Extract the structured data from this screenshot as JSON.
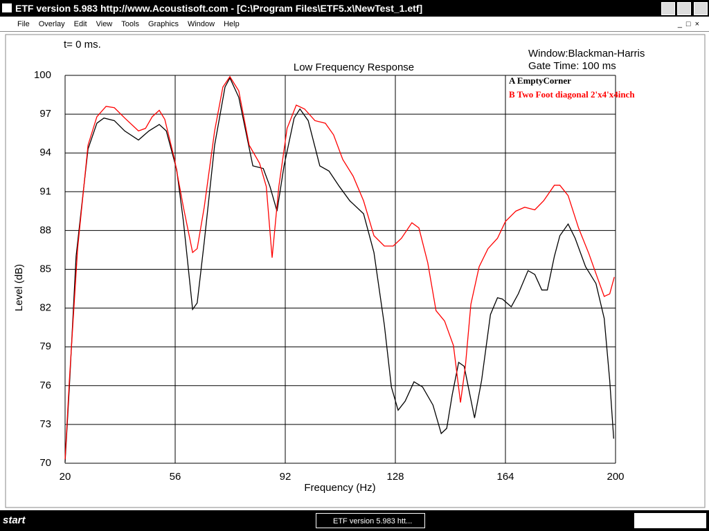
{
  "window": {
    "title": "ETF version 5.983 http://www.Acoustisoft.com - [C:\\Program Files\\ETF5.x\\NewTest_1.etf]",
    "menu": [
      "File",
      "Overlay",
      "Edit",
      "View",
      "Tools",
      "Graphics",
      "Window",
      "Help"
    ],
    "time_label": "t= 0 ms.",
    "window_label": "Window:Blackman-Harris",
    "gate_label": "Gate Time: 100 ms",
    "start": "start",
    "task": "ETF version 5.983 htt..."
  },
  "chart_data": {
    "type": "line",
    "title": "Low Frequency Response",
    "x_label": "Frequency (Hz)",
    "y_label": "Level (dB)",
    "xlim": [
      20,
      200
    ],
    "xticks": [
      20,
      56,
      92,
      128,
      164,
      200
    ],
    "ylim": [
      70,
      100
    ],
    "yticks": [
      70,
      73,
      76,
      79,
      82,
      85,
      88,
      91,
      94,
      97,
      100
    ],
    "grid": true,
    "series": [
      {
        "name": "A EmptyCorner",
        "color": "#000000",
        "x": [
          20,
          21.4,
          23.6,
          27.5,
          30.4,
          32.7,
          36.1,
          39.5,
          44,
          47.4,
          50.8,
          53.1,
          56.5,
          58.7,
          61.7,
          63.2,
          65.5,
          68.9,
          72.3,
          73.9,
          76.8,
          81.4,
          84.8,
          87,
          89.3,
          91.6,
          94.9,
          96.8,
          99.5,
          103.3,
          106.3,
          109.7,
          113.1,
          117.6,
          121,
          124.4,
          126.7,
          128.9,
          131.2,
          134.1,
          136.9,
          140.3,
          143,
          144.8,
          146.6,
          148.7,
          150.5,
          153.9,
          156.2,
          159.1,
          161.4,
          163,
          165.9,
          168.2,
          171.4,
          173.6,
          175.9,
          177.7,
          180,
          181.8,
          184.5,
          186.8,
          190.2,
          193.6,
          196.3,
          198.1,
          199.4
        ],
        "values": [
          70.1,
          75.9,
          86,
          94.3,
          96.3,
          96.7,
          96.5,
          95.7,
          95,
          95.7,
          96.2,
          95.7,
          92.7,
          88.7,
          81.9,
          82.4,
          87.1,
          94.6,
          99.1,
          99.8,
          98.3,
          93,
          92.8,
          91.4,
          89.5,
          93,
          96.7,
          97.4,
          96.5,
          93,
          92.6,
          91.4,
          90.3,
          89.3,
          86.3,
          80.7,
          75.9,
          74.1,
          74.8,
          76.3,
          75.9,
          74.5,
          72.3,
          72.7,
          75.3,
          77.8,
          77.5,
          73.5,
          76.4,
          81.5,
          82.8,
          82.7,
          82.1,
          83.1,
          84.9,
          84.6,
          83.4,
          83.4,
          86,
          87.6,
          88.5,
          87.4,
          85.2,
          83.9,
          81.2,
          76.4,
          71.9
        ]
      },
      {
        "name": "B Two Foot diagonal 2'x4'x4inch",
        "color": "#ff0000",
        "x": [
          20,
          21.4,
          24.1,
          27.5,
          30.4,
          33.4,
          36.1,
          39.5,
          44,
          46.3,
          48.5,
          50.8,
          52.6,
          55.8,
          58.7,
          61.7,
          63.2,
          65.5,
          68.9,
          71.6,
          73.9,
          76.8,
          80.2,
          83.6,
          85.8,
          87.7,
          89.9,
          92.6,
          95.6,
          98.3,
          101.7,
          105.1,
          107.8,
          110.8,
          114.2,
          117.6,
          121,
          124.4,
          127.3,
          130,
          133.4,
          135.7,
          138.6,
          141.3,
          144.1,
          147,
          149.3,
          150.9,
          152.7,
          155.4,
          158.3,
          161.4,
          164,
          167.4,
          170.3,
          173.6,
          176.5,
          180,
          181.8,
          184.5,
          187.9,
          191.3,
          194,
          196.3,
          198.1,
          199.6
        ],
        "values": [
          70.3,
          76.4,
          86.6,
          94.6,
          96.8,
          97.6,
          97.5,
          96.7,
          95.7,
          95.9,
          96.8,
          97.3,
          96.6,
          93.5,
          89.8,
          86.3,
          86.6,
          89.8,
          95.7,
          99.1,
          99.9,
          98.8,
          94.6,
          93.2,
          91.4,
          85.9,
          91.4,
          95.9,
          97.7,
          97.4,
          96.5,
          96.3,
          95.4,
          93.5,
          92.2,
          90.3,
          87.6,
          86.8,
          86.8,
          87.4,
          88.6,
          88.2,
          85.5,
          81.8,
          81,
          79.1,
          74.7,
          77.5,
          82.3,
          85.2,
          86.6,
          87.4,
          88.7,
          89.5,
          89.8,
          89.6,
          90.3,
          91.5,
          91.5,
          90.7,
          88.2,
          86.2,
          84.4,
          82.9,
          83.1,
          84.4
        ]
      }
    ]
  }
}
